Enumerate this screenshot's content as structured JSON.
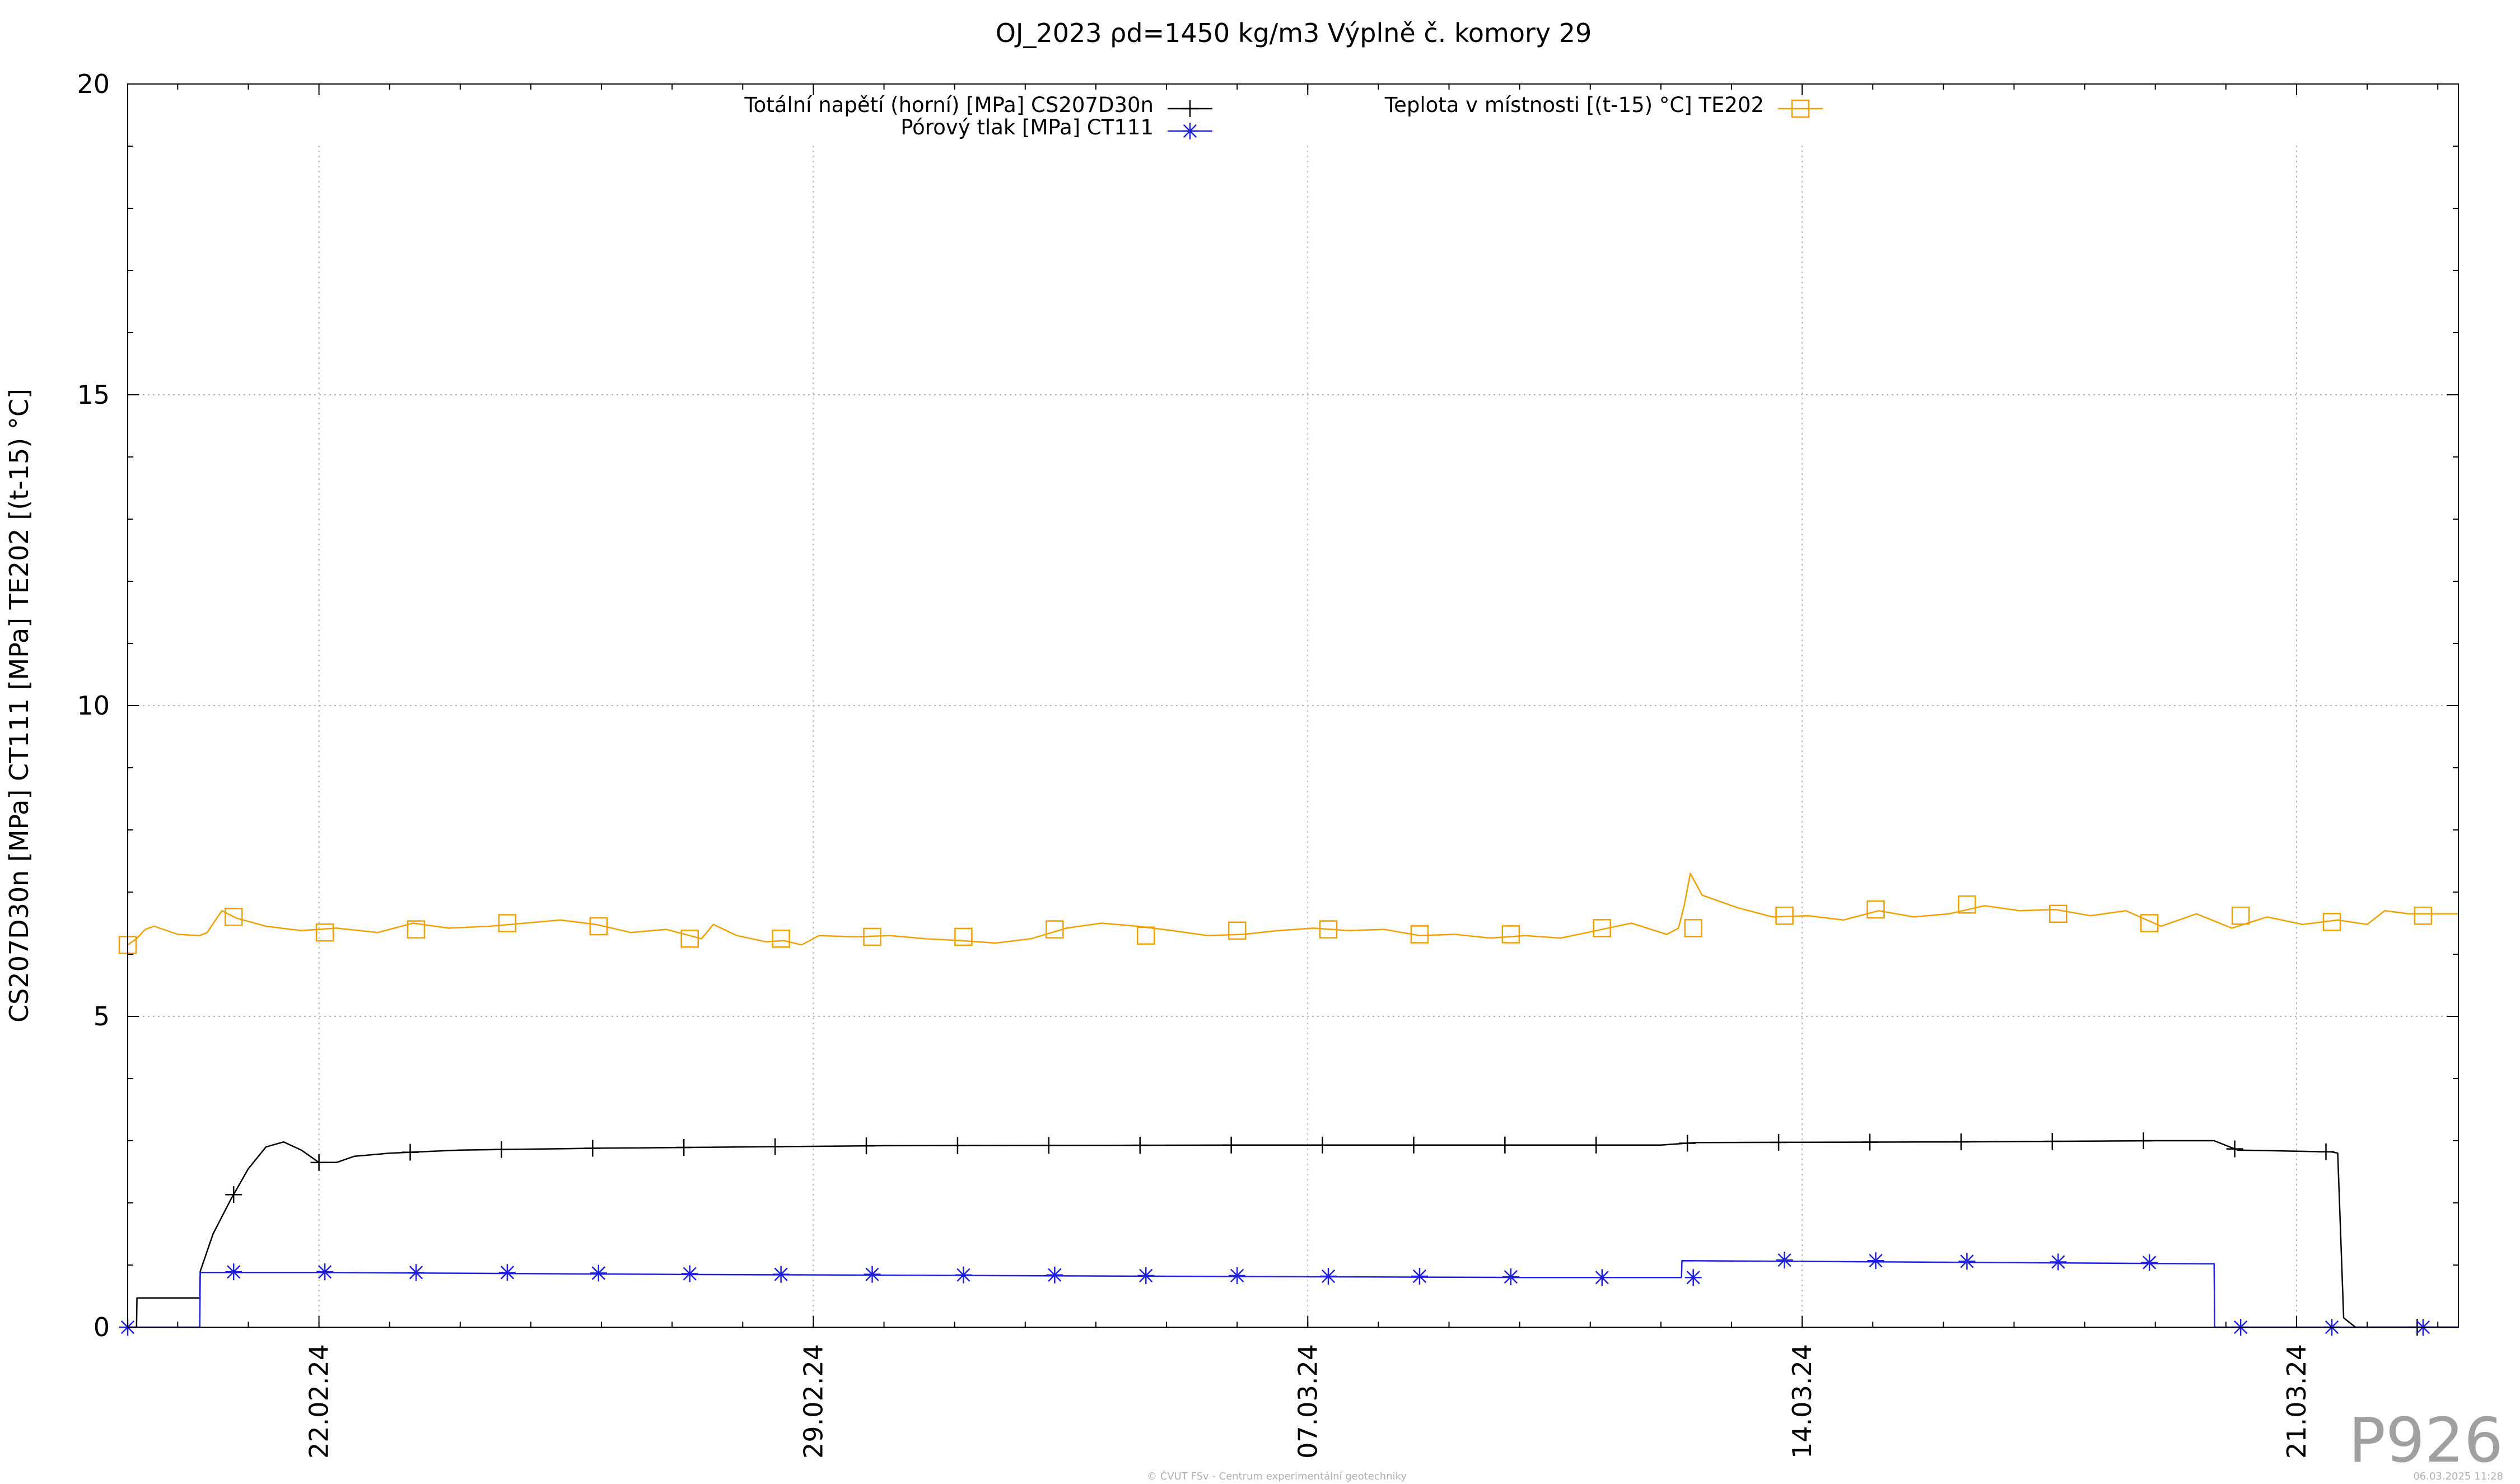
{
  "chart_data": {
    "type": "line",
    "title": "OJ_2023 ρd=1450 kg/m3 Výplně č. komory 29",
    "ylabel": "CS207D30n [MPa] CT111 [MPa] TE202 [(t-15) °C]",
    "xlabel": "",
    "ylim": [
      0,
      20
    ],
    "y_ticks": [
      0,
      5,
      10,
      15,
      20
    ],
    "xlim": [
      "2024-02-19T07:00",
      "2024-03-23T07:00"
    ],
    "x_ticks": [
      {
        "date": "2024-02-22",
        "label": "22.02.24"
      },
      {
        "date": "2024-02-29",
        "label": "29.02.24"
      },
      {
        "date": "2024-03-07",
        "label": "07.03.24"
      },
      {
        "date": "2024-03-14",
        "label": "14.03.24"
      },
      {
        "date": "2024-03-21",
        "label": "21.03.24"
      }
    ],
    "grid": true,
    "legend_position": "top",
    "series": [
      {
        "name": "Totální napětí (horní) [MPa] CS207D30n",
        "color": "#000000",
        "marker": "plus",
        "points": [
          [
            "2024-02-19T07:00",
            0.0
          ],
          [
            "2024-02-19T10:00",
            0.0
          ],
          [
            "2024-02-19T10:10",
            0.47
          ],
          [
            "2024-02-20T07:00",
            0.47
          ],
          [
            "2024-02-20T07:30",
            0.47
          ],
          [
            "2024-02-20T07:40",
            0.9
          ],
          [
            "2024-02-20T12:00",
            1.5
          ],
          [
            "2024-02-20T18:00",
            2.05
          ],
          [
            "2024-02-21T00:00",
            2.55
          ],
          [
            "2024-02-21T06:00",
            2.9
          ],
          [
            "2024-02-21T12:00",
            2.98
          ],
          [
            "2024-02-21T18:00",
            2.85
          ],
          [
            "2024-02-22T00:00",
            2.65
          ],
          [
            "2024-02-22T06:00",
            2.65
          ],
          [
            "2024-02-22T12:00",
            2.75
          ],
          [
            "2024-02-23T00:00",
            2.8
          ],
          [
            "2024-02-24T00:00",
            2.85
          ],
          [
            "2024-02-26T00:00",
            2.88
          ],
          [
            "2024-03-01T00:00",
            2.92
          ],
          [
            "2024-03-06T00:00",
            2.93
          ],
          [
            "2024-03-12T00:00",
            2.93
          ],
          [
            "2024-03-12T12:00",
            2.97
          ],
          [
            "2024-03-16T00:00",
            2.98
          ],
          [
            "2024-03-19T00:00",
            3.0
          ],
          [
            "2024-03-19T20:00",
            3.0
          ],
          [
            "2024-03-20T04:00",
            2.85
          ],
          [
            "2024-03-21T12:00",
            2.82
          ],
          [
            "2024-03-21T14:00",
            2.8
          ],
          [
            "2024-03-21T16:00",
            0.15
          ],
          [
            "2024-03-21T20:00",
            0.0
          ],
          [
            "2024-03-23T07:00",
            0.0
          ]
        ],
        "marker_dates": [
          "2024-02-20T19:00",
          "2024-02-22T00:00",
          "2024-02-23T07:00",
          "2024-02-24T14:00",
          "2024-02-25T21:00",
          "2024-02-27T04:00",
          "2024-02-28T11:00",
          "2024-02-29T18:00",
          "2024-03-02T01:00",
          "2024-03-03T08:00",
          "2024-03-04T15:00",
          "2024-03-05T22:00",
          "2024-03-07T05:00",
          "2024-03-08T12:00",
          "2024-03-09T19:00",
          "2024-03-11T02:00",
          "2024-03-12T09:00",
          "2024-03-13T16:00",
          "2024-03-14T23:00",
          "2024-03-16T06:00",
          "2024-03-17T13:00",
          "2024-03-18T20:00",
          "2024-03-20T03:00",
          "2024-03-21T10:00",
          "2024-03-22T17:00"
        ]
      },
      {
        "name": "Pórový tlak [MPa] CT111",
        "color": "#1f1fe0",
        "marker": "star",
        "points": [
          [
            "2024-02-19T07:00",
            0.0
          ],
          [
            "2024-02-20T07:30",
            0.0
          ],
          [
            "2024-02-20T07:40",
            0.88
          ],
          [
            "2024-02-22T00:00",
            0.88
          ],
          [
            "2024-02-27T00:00",
            0.85
          ],
          [
            "2024-03-05T00:00",
            0.82
          ],
          [
            "2024-03-10T00:00",
            0.8
          ],
          [
            "2024-03-12T07:00",
            0.8
          ],
          [
            "2024-03-12T07:10",
            1.07
          ],
          [
            "2024-03-19T20:00",
            1.02
          ],
          [
            "2024-03-19T20:10",
            0.0
          ],
          [
            "2024-03-23T07:00",
            0.0
          ]
        ],
        "markers": [
          [
            "2024-02-19T07:00",
            0.0
          ],
          [
            "2024-02-20T19:00",
            0.89
          ],
          [
            "2024-02-22T02:00",
            0.89
          ],
          [
            "2024-02-23T09:00",
            0.88
          ],
          [
            "2024-02-24T16:00",
            0.88
          ],
          [
            "2024-02-25T23:00",
            0.87
          ],
          [
            "2024-02-27T06:00",
            0.86
          ],
          [
            "2024-02-28T13:00",
            0.85
          ],
          [
            "2024-02-29T20:00",
            0.85
          ],
          [
            "2024-03-02T03:00",
            0.84
          ],
          [
            "2024-03-03T10:00",
            0.84
          ],
          [
            "2024-03-04T17:00",
            0.83
          ],
          [
            "2024-03-06T00:00",
            0.83
          ],
          [
            "2024-03-07T07:00",
            0.82
          ],
          [
            "2024-03-08T14:00",
            0.82
          ],
          [
            "2024-03-09T21:00",
            0.81
          ],
          [
            "2024-03-11T04:00",
            0.8
          ],
          [
            "2024-03-12T11:00",
            0.8
          ],
          [
            "2024-03-13T18:00",
            1.08
          ],
          [
            "2024-03-15T01:00",
            1.07
          ],
          [
            "2024-03-16T08:00",
            1.06
          ],
          [
            "2024-03-17T15:00",
            1.05
          ],
          [
            "2024-03-18T22:00",
            1.04
          ],
          [
            "2024-03-20T05:00",
            0.0
          ],
          [
            "2024-03-21T12:00",
            0.0
          ],
          [
            "2024-03-22T19:00",
            0.0
          ]
        ]
      },
      {
        "name": "Teplota v místnosti [(t-15) °C] TE202",
        "color": "#f0a000",
        "marker": "square",
        "points": [
          [
            "2024-02-19T07:00",
            6.15
          ],
          [
            "2024-02-19T10:00",
            6.25
          ],
          [
            "2024-02-19T13:00",
            6.4
          ],
          [
            "2024-02-19T16:00",
            6.45
          ],
          [
            "2024-02-20T00:00",
            6.32
          ],
          [
            "2024-02-20T07:30",
            6.3
          ],
          [
            "2024-02-20T10:00",
            6.35
          ],
          [
            "2024-02-20T15:00",
            6.7
          ],
          [
            "2024-02-20T20:00",
            6.58
          ],
          [
            "2024-02-21T06:00",
            6.45
          ],
          [
            "2024-02-21T18:00",
            6.38
          ],
          [
            "2024-02-22T06:00",
            6.42
          ],
          [
            "2024-02-22T20:00",
            6.35
          ],
          [
            "2024-02-23T08:00",
            6.5
          ],
          [
            "2024-02-23T20:00",
            6.42
          ],
          [
            "2024-02-24T10:00",
            6.45
          ],
          [
            "2024-02-24T22:00",
            6.5
          ],
          [
            "2024-02-25T10:00",
            6.55
          ],
          [
            "2024-02-25T22:00",
            6.48
          ],
          [
            "2024-02-26T10:00",
            6.35
          ],
          [
            "2024-02-26T22:00",
            6.4
          ],
          [
            "2024-02-27T10:00",
            6.25
          ],
          [
            "2024-02-27T14:00",
            6.48
          ],
          [
            "2024-02-27T22:00",
            6.3
          ],
          [
            "2024-02-28T08:00",
            6.2
          ],
          [
            "2024-02-28T14:00",
            6.22
          ],
          [
            "2024-02-28T20:00",
            6.15
          ],
          [
            "2024-02-29T02:00",
            6.3
          ],
          [
            "2024-02-29T14:00",
            6.28
          ],
          [
            "2024-03-01T02:00",
            6.3
          ],
          [
            "2024-03-01T14:00",
            6.25
          ],
          [
            "2024-03-02T02:00",
            6.22
          ],
          [
            "2024-03-02T14:00",
            6.18
          ],
          [
            "2024-03-03T02:00",
            6.25
          ],
          [
            "2024-03-03T14:00",
            6.42
          ],
          [
            "2024-03-04T02:00",
            6.5
          ],
          [
            "2024-03-04T14:00",
            6.45
          ],
          [
            "2024-03-05T02:00",
            6.38
          ],
          [
            "2024-03-05T14:00",
            6.3
          ],
          [
            "2024-03-06T02:00",
            6.32
          ],
          [
            "2024-03-06T14:00",
            6.38
          ],
          [
            "2024-03-07T02:00",
            6.42
          ],
          [
            "2024-03-07T14:00",
            6.38
          ],
          [
            "2024-03-08T02:00",
            6.4
          ],
          [
            "2024-03-08T14:00",
            6.3
          ],
          [
            "2024-03-09T02:00",
            6.32
          ],
          [
            "2024-03-09T14:00",
            6.26
          ],
          [
            "2024-03-10T02:00",
            6.3
          ],
          [
            "2024-03-10T14:00",
            6.26
          ],
          [
            "2024-03-11T02:00",
            6.38
          ],
          [
            "2024-03-11T14:00",
            6.5
          ],
          [
            "2024-03-12T02:00",
            6.32
          ],
          [
            "2024-03-12T06:00",
            6.42
          ],
          [
            "2024-03-12T08:00",
            6.8
          ],
          [
            "2024-03-12T10:00",
            7.3
          ],
          [
            "2024-03-12T14:00",
            6.95
          ],
          [
            "2024-03-13T02:00",
            6.75
          ],
          [
            "2024-03-13T14:00",
            6.6
          ],
          [
            "2024-03-14T02:00",
            6.62
          ],
          [
            "2024-03-14T14:00",
            6.55
          ],
          [
            "2024-03-15T02:00",
            6.7
          ],
          [
            "2024-03-15T14:00",
            6.6
          ],
          [
            "2024-03-16T02:00",
            6.65
          ],
          [
            "2024-03-16T14:00",
            6.78
          ],
          [
            "2024-03-17T02:00",
            6.7
          ],
          [
            "2024-03-17T14:00",
            6.72
          ],
          [
            "2024-03-18T02:00",
            6.62
          ],
          [
            "2024-03-18T14:00",
            6.7
          ],
          [
            "2024-03-19T02:00",
            6.45
          ],
          [
            "2024-03-19T14:00",
            6.65
          ],
          [
            "2024-03-20T02:00",
            6.42
          ],
          [
            "2024-03-20T14:00",
            6.6
          ],
          [
            "2024-03-21T02:00",
            6.48
          ],
          [
            "2024-03-21T14:00",
            6.55
          ],
          [
            "2024-03-22T00:00",
            6.48
          ],
          [
            "2024-03-22T06:00",
            6.7
          ],
          [
            "2024-03-22T14:00",
            6.65
          ],
          [
            "2024-03-23T07:00",
            6.65
          ]
        ],
        "markers": [
          [
            "2024-02-19T07:00",
            6.15
          ],
          [
            "2024-02-20T19:00",
            6.6
          ],
          [
            "2024-02-22T02:00",
            6.35
          ],
          [
            "2024-02-23T09:00",
            6.4
          ],
          [
            "2024-02-24T16:00",
            6.5
          ],
          [
            "2024-02-25T23:00",
            6.45
          ],
          [
            "2024-02-27T06:00",
            6.25
          ],
          [
            "2024-02-28T13:00",
            6.25
          ],
          [
            "2024-02-29T20:00",
            6.28
          ],
          [
            "2024-03-02T03:00",
            6.28
          ],
          [
            "2024-03-03T10:00",
            6.4
          ],
          [
            "2024-03-04T17:00",
            6.3
          ],
          [
            "2024-03-06T00:00",
            6.38
          ],
          [
            "2024-03-07T07:00",
            6.4
          ],
          [
            "2024-03-08T14:00",
            6.32
          ],
          [
            "2024-03-09T21:00",
            6.32
          ],
          [
            "2024-03-11T04:00",
            6.42
          ],
          [
            "2024-03-12T11:00",
            6.42
          ],
          [
            "2024-03-13T18:00",
            6.62
          ],
          [
            "2024-03-15T01:00",
            6.72
          ],
          [
            "2024-03-16T08:00",
            6.8
          ],
          [
            "2024-03-17T15:00",
            6.65
          ],
          [
            "2024-03-18T22:00",
            6.5
          ],
          [
            "2024-03-20T05:00",
            6.62
          ],
          [
            "2024-03-21T12:00",
            6.52
          ],
          [
            "2024-03-22T19:00",
            6.62
          ]
        ]
      }
    ]
  },
  "watermark": "P926",
  "footer_left": "© ČVUT FSv - Centrum experimentální geotechniky",
  "footer_right": "06.03.2025 11:28"
}
